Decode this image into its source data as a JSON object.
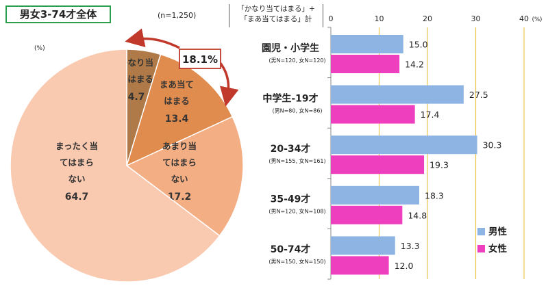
{
  "header": {
    "title": "男女3-74才全体",
    "n_label": "(n=1,250)",
    "pct_unit_left": "(%)",
    "pct_unit_right": "(%)",
    "bar_caption_line1": "「かなり当てはまる」+",
    "bar_caption_line2": "「まあ当てはまる」計",
    "highlight_pct": "18.1%"
  },
  "colors": {
    "male": "#8eb4e3",
    "female": "#ee3fbf",
    "pie_kanari": "#b07a48",
    "pie_maa": "#e08c4e",
    "pie_amari": "#f4ae84",
    "pie_mattaku": "#f9c9b0",
    "gridline": "#e8c64a",
    "arrow": "#c0392b"
  },
  "chart_data": [
    {
      "type": "pie",
      "title": "男女3-74才全体",
      "slices": [
        {
          "label_lines": [
            "かなり当",
            "てはまる"
          ],
          "value": 4.7,
          "value_text": "4.7"
        },
        {
          "label_lines": [
            "まあ当て",
            "はまる"
          ],
          "value": 13.4,
          "value_text": "13.4"
        },
        {
          "label_lines": [
            "あまり当",
            "てはまら",
            "ない"
          ],
          "value": 17.2,
          "value_text": "17.2"
        },
        {
          "label_lines": [
            "まったく当",
            "てはまら",
            "ない"
          ],
          "value": 64.7,
          "value_text": "64.7"
        }
      ]
    },
    {
      "type": "bar",
      "orientation": "horizontal",
      "xlim": [
        0,
        40
      ],
      "xticks": [
        "0",
        "10",
        "20",
        "30",
        "40"
      ],
      "grid": true,
      "legend_position": "bottom-right",
      "categories": [
        {
          "name": "園児・小学生",
          "sub": "(男N=120, 女N=120)"
        },
        {
          "name": "中学生-19才",
          "sub": "(男N=80, 女N=86)"
        },
        {
          "name": "20-34才",
          "sub": "(男N=155, 女N=161)"
        },
        {
          "name": "35-49才",
          "sub": "(男N=120, 女N=108)"
        },
        {
          "name": "50-74才",
          "sub": "(男N=150, 女N=150)"
        }
      ],
      "series": [
        {
          "name": "男性",
          "values": [
            15.0,
            27.5,
            30.3,
            18.3,
            13.3
          ],
          "labels": [
            "15.0",
            "27.5",
            "30.3",
            "18.3",
            "13.3"
          ]
        },
        {
          "name": "女性",
          "values": [
            14.2,
            17.4,
            19.3,
            14.8,
            12.0
          ],
          "labels": [
            "14.2",
            "17.4",
            "19.3",
            "14.8",
            "12.0"
          ]
        }
      ]
    }
  ]
}
